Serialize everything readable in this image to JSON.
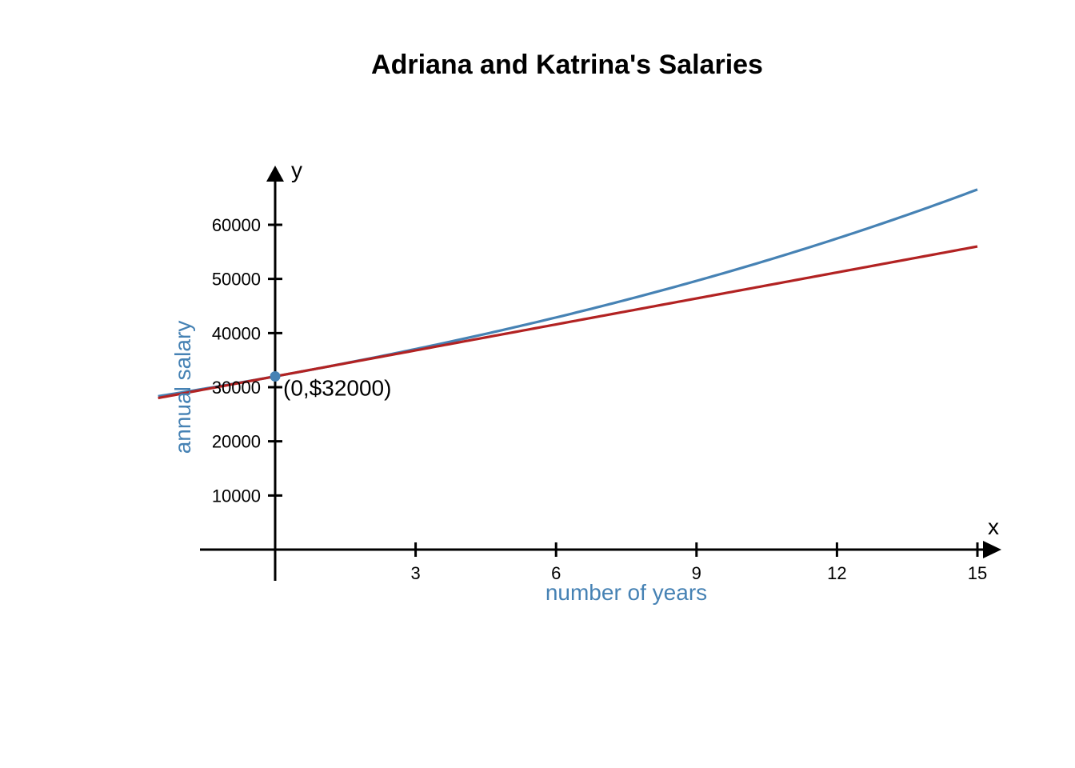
{
  "chart_data": {
    "type": "line",
    "title": "Adriana and Katrina's Salaries",
    "xlabel": "number of years",
    "ylabel": "annual salary",
    "x_axis_letter": "x",
    "y_axis_letter": "y",
    "xlim": [
      -1.6,
      15.5
    ],
    "ylim": [
      0,
      68000
    ],
    "x_ticks": [
      3,
      6,
      9,
      12,
      15
    ],
    "y_ticks": [
      10000,
      20000,
      30000,
      40000,
      50000,
      60000
    ],
    "x_tick_labels": [
      "3",
      "6",
      "9",
      "12",
      "15"
    ],
    "y_tick_labels": [
      "10000",
      "20000",
      "30000",
      "40000",
      "50000",
      "60000"
    ],
    "grid": false,
    "series": [
      {
        "model": "exponential",
        "initial": 32000,
        "rate": 0.05,
        "x_range": [
          -2.5,
          15
        ],
        "color": "#4682b4"
      },
      {
        "model": "linear",
        "intercept": 32000,
        "slope": 1600,
        "x_range": [
          -2.5,
          15
        ],
        "color": "#b22222"
      }
    ],
    "annotations": [
      {
        "text": "(0,$32000)",
        "x": 0,
        "y": 32000
      }
    ],
    "label_color": "#4682b4",
    "point_color": "#4682b4"
  }
}
